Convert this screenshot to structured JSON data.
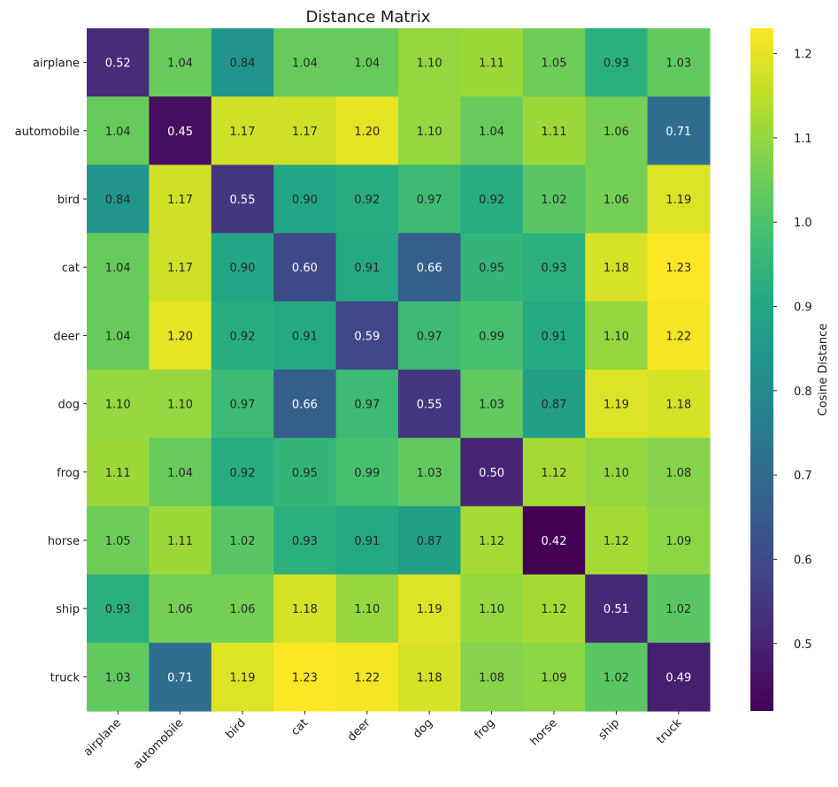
{
  "chart_data": {
    "type": "heatmap",
    "title": "Distance Matrix",
    "xlabel": "",
    "ylabel": "",
    "categories": [
      "airplane",
      "automobile",
      "bird",
      "cat",
      "deer",
      "dog",
      "frog",
      "horse",
      "ship",
      "truck"
    ],
    "matrix": [
      [
        0.52,
        1.04,
        0.84,
        1.04,
        1.04,
        1.1,
        1.11,
        1.05,
        0.93,
        1.03
      ],
      [
        1.04,
        0.45,
        1.17,
        1.17,
        1.2,
        1.1,
        1.04,
        1.11,
        1.06,
        0.71
      ],
      [
        0.84,
        1.17,
        0.55,
        0.9,
        0.92,
        0.97,
        0.92,
        1.02,
        1.06,
        1.19
      ],
      [
        1.04,
        1.17,
        0.9,
        0.6,
        0.91,
        0.66,
        0.95,
        0.93,
        1.18,
        1.23
      ],
      [
        1.04,
        1.2,
        0.92,
        0.91,
        0.59,
        0.97,
        0.99,
        0.91,
        1.1,
        1.22
      ],
      [
        1.1,
        1.1,
        0.97,
        0.66,
        0.97,
        0.55,
        1.03,
        0.87,
        1.19,
        1.18
      ],
      [
        1.11,
        1.04,
        0.92,
        0.95,
        0.99,
        1.03,
        0.5,
        1.12,
        1.1,
        1.08
      ],
      [
        1.05,
        1.11,
        1.02,
        0.93,
        0.91,
        0.87,
        1.12,
        0.42,
        1.12,
        1.09
      ],
      [
        0.93,
        1.06,
        1.06,
        1.18,
        1.1,
        1.19,
        1.1,
        1.12,
        0.51,
        1.02
      ],
      [
        1.03,
        0.71,
        1.19,
        1.23,
        1.22,
        1.18,
        1.08,
        1.09,
        1.02,
        0.49
      ]
    ],
    "colormap": "viridis",
    "vmin": 0.42,
    "vmax": 1.23,
    "colorbar": {
      "label": "Cosine Distance",
      "ticks": [
        0.5,
        0.6,
        0.7,
        0.8,
        0.9,
        1.0,
        1.1,
        1.2
      ],
      "tick_labels": [
        "0.5",
        "0.6",
        "0.7",
        "0.8",
        "0.9",
        "1.0",
        "1.1",
        "1.2"
      ]
    },
    "annotation_format": "2 decimals",
    "grid": false
  }
}
